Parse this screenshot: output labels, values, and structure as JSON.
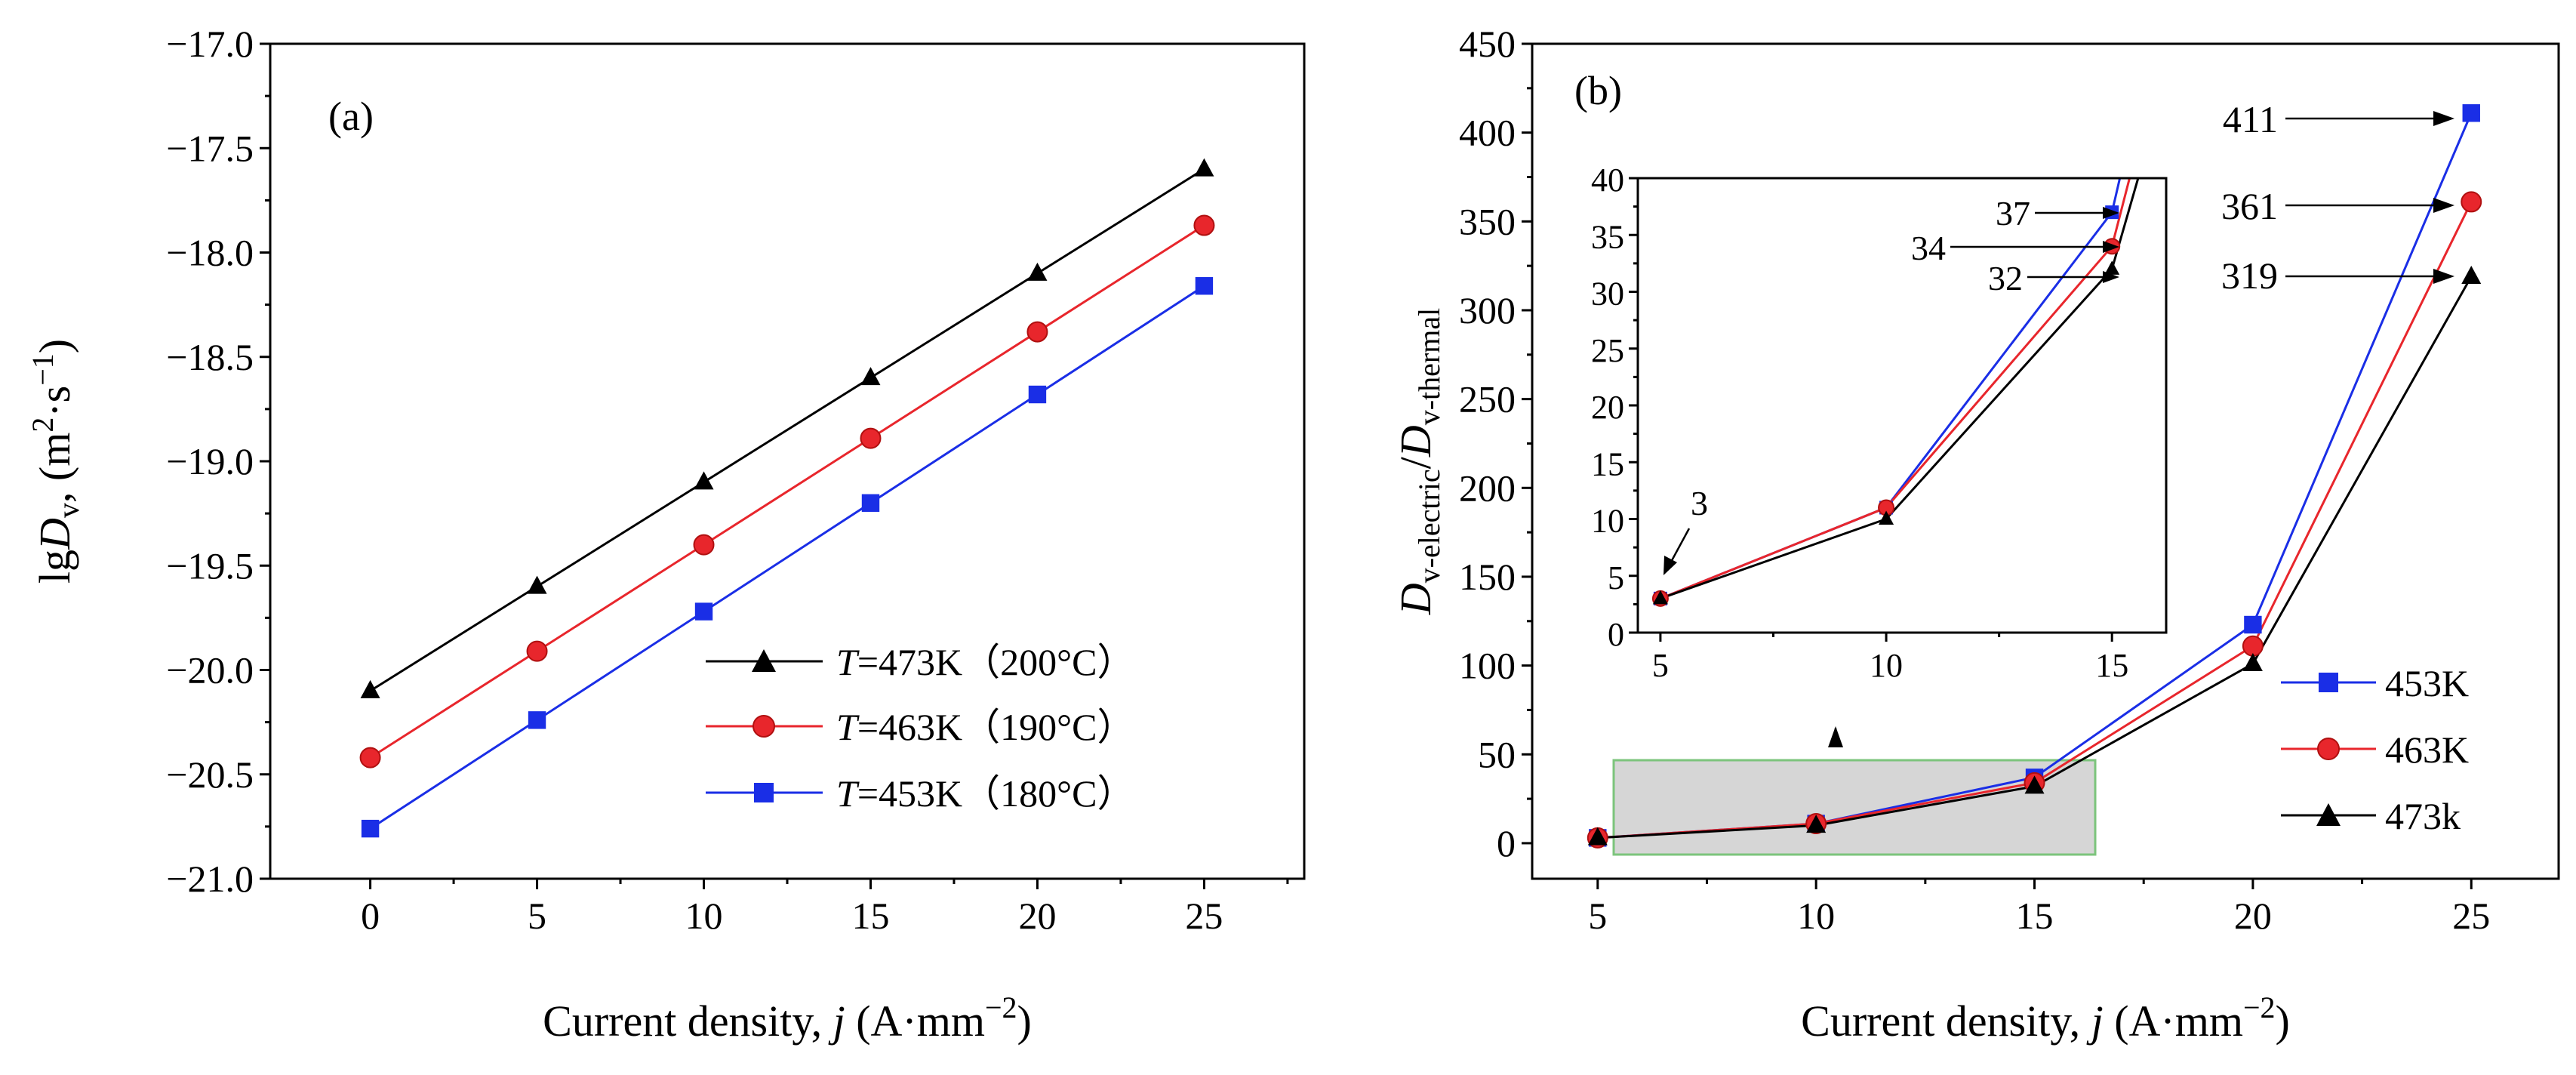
{
  "chart_data": [
    {
      "type": "line",
      "panel_label": "(a)",
      "xlabel": "Current density, j (A·mm−2)",
      "ylabel": "lgDv, (m2·s−1)",
      "xlim": [
        -3,
        28
      ],
      "ylim": [
        -21.0,
        -17.0
      ],
      "xticks": [
        "0",
        "5",
        "10",
        "15",
        "20",
        "25"
      ],
      "yticks": [
        "−21.0",
        "−20.5",
        "−20.0",
        "−19.5",
        "−19.0",
        "−18.5",
        "−18.0",
        "−17.5",
        "−17.0"
      ],
      "x": [
        0,
        5,
        10,
        15,
        20,
        25
      ],
      "series": [
        {
          "name": "T=473K（200°C）",
          "temp_label": "T",
          "legend_rest": "=473K（200°C）",
          "color": "#000000",
          "marker": "triangle",
          "values": [
            -20.1,
            -19.6,
            -19.1,
            -18.6,
            -18.1,
            -17.6
          ]
        },
        {
          "name": "T=463K（190°C）",
          "temp_label": "T",
          "legend_rest": "=463K（190°C）",
          "color": "#e8262c",
          "marker": "circle",
          "values": [
            -20.42,
            -19.91,
            -19.4,
            -18.89,
            -18.38,
            -17.87
          ]
        },
        {
          "name": "T=453K（180°C）",
          "temp_label": "T",
          "legend_rest": "=453K（180°C）",
          "color": "#1a2ee6",
          "marker": "square",
          "values": [
            -20.76,
            -20.24,
            -19.72,
            -19.2,
            -18.68,
            -18.16
          ]
        }
      ],
      "legend_position": "bottom-right"
    },
    {
      "type": "line",
      "panel_label": "(b)",
      "xlabel": "Current density, j (A·mm−2)",
      "ylabel": "Dv-electric/Dv-thermal",
      "xlim": [
        3.5,
        27
      ],
      "ylim": [
        -20,
        450
      ],
      "xticks": [
        "5",
        "10",
        "15",
        "20",
        "25"
      ],
      "yticks": [
        "0",
        "50",
        "100",
        "150",
        "200",
        "250",
        "300",
        "350",
        "400",
        "450"
      ],
      "x": [
        5,
        10,
        15,
        20,
        25
      ],
      "series": [
        {
          "name": "453K",
          "color": "#1a2ee6",
          "marker": "square",
          "values": [
            3,
            11,
            37,
            123,
            411
          ]
        },
        {
          "name": "463K",
          "color": "#e8262c",
          "marker": "circle",
          "values": [
            3,
            11,
            34,
            111,
            361
          ]
        },
        {
          "name": "473k",
          "color": "#000000",
          "marker": "triangle",
          "values": [
            3,
            10,
            32,
            101,
            319
          ]
        }
      ],
      "annotations": [
        "411",
        "361",
        "319"
      ],
      "legend_position": "bottom-right",
      "inset": {
        "xlim": [
          4.5,
          16.2
        ],
        "ylim": [
          0,
          40
        ],
        "xticks": [
          "5",
          "10",
          "15"
        ],
        "yticks": [
          "0",
          "5",
          "10",
          "15",
          "20",
          "25",
          "30",
          "35",
          "40"
        ],
        "annotations": [
          "3",
          "37",
          "34",
          "32"
        ]
      }
    }
  ]
}
